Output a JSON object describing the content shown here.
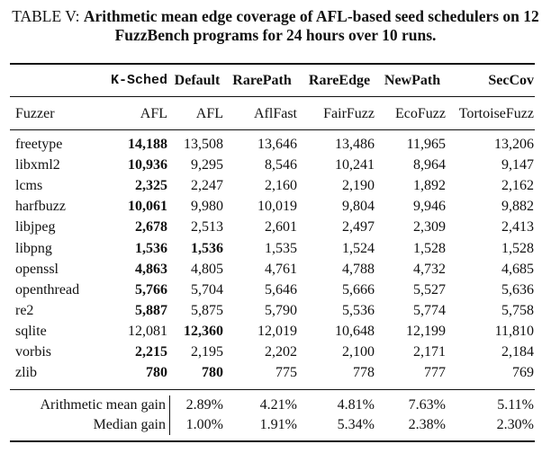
{
  "caption": {
    "lead": "TABLE V: ",
    "title": "Arithmetic mean edge coverage of AFL-based seed schedulers on 12 FuzzBench programs for 24 hours over 10 runs."
  },
  "group_header": {
    "ksched": "K-Sched",
    "default": "Default",
    "rarepath": "RarePath",
    "rareedge": "RareEdge",
    "newpath": "NewPath",
    "seccov": "SecCov"
  },
  "column_header": {
    "fuzzer": "Fuzzer",
    "c1": "AFL",
    "c2": "AFL",
    "c3": "AflFast",
    "c4": "FairFuzz",
    "c5": "EcoFuzz",
    "c6": "TortoiseFuzz"
  },
  "rows": [
    {
      "name": "freetype",
      "v": [
        "14,188",
        "13,508",
        "13,646",
        "13,486",
        "11,965",
        "13,206"
      ],
      "bold": [
        0
      ]
    },
    {
      "name": "libxml2",
      "v": [
        "10,936",
        "9,295",
        "8,546",
        "10,241",
        "8,964",
        "9,147"
      ],
      "bold": [
        0
      ]
    },
    {
      "name": "lcms",
      "v": [
        "2,325",
        "2,247",
        "2,160",
        "2,190",
        "1,892",
        "2,162"
      ],
      "bold": [
        0
      ]
    },
    {
      "name": "harfbuzz",
      "v": [
        "10,061",
        "9,980",
        "10,019",
        "9,804",
        "9,946",
        "9,882"
      ],
      "bold": [
        0
      ]
    },
    {
      "name": "libjpeg",
      "v": [
        "2,678",
        "2,513",
        "2,601",
        "2,497",
        "2,309",
        "2,413"
      ],
      "bold": [
        0
      ]
    },
    {
      "name": "libpng",
      "v": [
        "1,536",
        "1,536",
        "1,535",
        "1,524",
        "1,528",
        "1,528"
      ],
      "bold": [
        0,
        1
      ]
    },
    {
      "name": "openssl",
      "v": [
        "4,863",
        "4,805",
        "4,761",
        "4,788",
        "4,732",
        "4,685"
      ],
      "bold": [
        0
      ]
    },
    {
      "name": "openthread",
      "v": [
        "5,766",
        "5,704",
        "5,646",
        "5,666",
        "5,527",
        "5,636"
      ],
      "bold": [
        0
      ]
    },
    {
      "name": "re2",
      "v": [
        "5,887",
        "5,875",
        "5,790",
        "5,536",
        "5,774",
        "5,758"
      ],
      "bold": [
        0
      ]
    },
    {
      "name": "sqlite",
      "v": [
        "12,081",
        "12,360",
        "12,019",
        "10,648",
        "12,199",
        "11,810"
      ],
      "bold": [
        1
      ]
    },
    {
      "name": "vorbis",
      "v": [
        "2,215",
        "2,195",
        "2,202",
        "2,100",
        "2,171",
        "2,184"
      ],
      "bold": [
        0
      ]
    },
    {
      "name": "zlib",
      "v": [
        "780",
        "780",
        "775",
        "778",
        "777",
        "769"
      ],
      "bold": [
        0,
        1
      ]
    }
  ],
  "summary": [
    {
      "label": "Arithmetic mean gain",
      "v": [
        "2.89%",
        "4.21%",
        "4.81%",
        "7.63%",
        "5.11%"
      ]
    },
    {
      "label": "Median gain",
      "v": [
        "1.00%",
        "1.91%",
        "5.34%",
        "2.38%",
        "2.30%"
      ]
    }
  ]
}
